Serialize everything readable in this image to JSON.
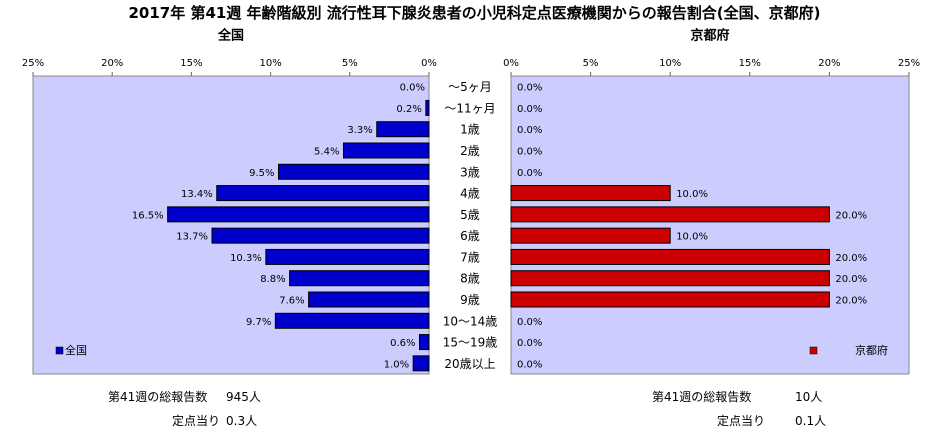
{
  "title": "2017年 第41週 年齢階級別 流行性耳下腺炎患者の小児科定点医療機関からの報告割合(全国、京都府)",
  "colors": {
    "national": "#0000cc",
    "kyoto": "#cc0000",
    "plot_bg": "#ccccff"
  },
  "chart_data": [
    {
      "type": "bar",
      "orientation": "horizontal",
      "title": "全国",
      "direction": "right-to-left",
      "xlim": [
        0,
        25
      ],
      "xticks": [
        "25%",
        "20%",
        "15%",
        "10%",
        "5%",
        "0%"
      ],
      "categories": [
        "～5ヶ月",
        "～11ヶ月",
        "1歳",
        "2歳",
        "3歳",
        "4歳",
        "5歳",
        "6歳",
        "7歳",
        "8歳",
        "9歳",
        "10～14歳",
        "15～19歳",
        "20歳以上"
      ],
      "series": [
        {
          "name": "全国",
          "values": [
            0.0,
            0.2,
            3.3,
            5.4,
            9.5,
            13.4,
            16.5,
            13.7,
            10.3,
            8.8,
            7.6,
            9.7,
            0.6,
            1.0
          ],
          "labels": [
            "0.0%",
            "0.2%",
            "3.3%",
            "5.4%",
            "9.5%",
            "13.4%",
            "16.5%",
            "13.7%",
            "10.3%",
            "8.8%",
            "7.6%",
            "9.7%",
            "0.6%",
            "1.0%"
          ]
        }
      ],
      "legend": "bottom-left",
      "grid": false
    },
    {
      "type": "bar",
      "orientation": "horizontal",
      "title": "京都府",
      "direction": "left-to-right",
      "xlim": [
        0,
        25
      ],
      "xticks": [
        "0%",
        "5%",
        "10%",
        "15%",
        "20%",
        "25%"
      ],
      "categories": [
        "～5ヶ月",
        "～11ヶ月",
        "1歳",
        "2歳",
        "3歳",
        "4歳",
        "5歳",
        "6歳",
        "7歳",
        "8歳",
        "9歳",
        "10～14歳",
        "15～19歳",
        "20歳以上"
      ],
      "series": [
        {
          "name": "京都府",
          "values": [
            0.0,
            0.0,
            0.0,
            0.0,
            0.0,
            10.0,
            20.0,
            10.0,
            20.0,
            20.0,
            20.0,
            0.0,
            0.0,
            0.0
          ],
          "labels": [
            "0.0%",
            "0.0%",
            "0.0%",
            "0.0%",
            "0.0%",
            "10.0%",
            "20.0%",
            "10.0%",
            "20.0%",
            "20.0%",
            "20.0%",
            "0.0%",
            "0.0%",
            "0.0%"
          ]
        }
      ],
      "legend": "bottom-right",
      "grid": false
    }
  ],
  "summary": {
    "national": {
      "total_label": "第41週の総報告数",
      "total_value": "945人",
      "per_label": "定点当り",
      "per_value": "0.3人"
    },
    "kyoto": {
      "total_label": "第41週の総報告数",
      "total_value": "10人",
      "per_label": "定点当り",
      "per_value": "0.1人"
    }
  }
}
